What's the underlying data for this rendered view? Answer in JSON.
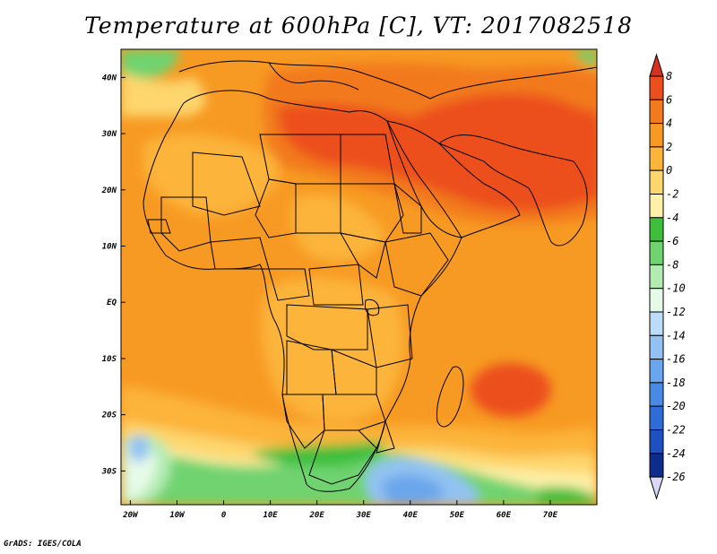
{
  "title": "Temperature at 600hPa [C], VT: 2017082518",
  "footer": "GrADS: IGES/COLA",
  "map": {
    "lon_labels": [
      "20W",
      "10W",
      "0",
      "10E",
      "20E",
      "30E",
      "40E",
      "50E",
      "60E",
      "70E"
    ],
    "lat_labels": [
      "40N",
      "30N",
      "20N",
      "10N",
      "EQ",
      "10S",
      "20S",
      "30S"
    ],
    "lon_range": [
      -22,
      80
    ],
    "lat_range": [
      -36,
      45
    ]
  },
  "colorbar": {
    "labels": [
      "8",
      "6",
      "4",
      "2",
      "0",
      "-2",
      "-4",
      "-6",
      "-8",
      "-10",
      "-12",
      "-14",
      "-16",
      "-18",
      "-20",
      "-22",
      "-24",
      "-26"
    ],
    "colors": {
      "above_8": "#d7301f",
      "6_8": "#ec4f1e",
      "4_6": "#f27a1f",
      "2_4": "#f79a23",
      "0_2": "#fcb43a",
      "-2_0": "#fdd66d",
      "-4_-2": "#fdf0a8",
      "-6_-4": "#3dbf3d",
      "-8_-6": "#6fd36f",
      "-10_-8": "#b3ecb3",
      "-12_-10": "#e6fae8",
      "-14_-12": "#bcdcf8",
      "-16_-14": "#93c2f2",
      "-18_-16": "#6aa6ec",
      "-20_-18": "#4a8ae4",
      "-22_-20": "#2f6cd8",
      "-24_-22": "#1e50c0",
      "-26_-24": "#0e2c8c",
      "below_-26": "#d8d8f8"
    }
  }
}
